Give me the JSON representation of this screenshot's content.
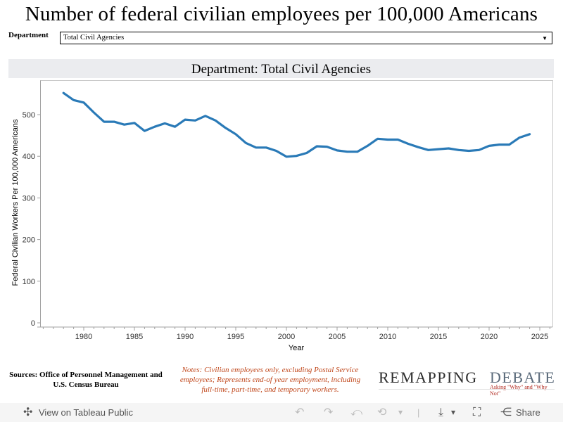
{
  "title": "Number of federal civilian employees per 100,000 Americans",
  "filter": {
    "label": "Department",
    "selected": "Total Civil Agencies",
    "arrow": "▼"
  },
  "chart_header": "Department: Total Civil Agencies",
  "chart_data": {
    "type": "line",
    "title": "Department: Total Civil Agencies",
    "xlabel": "Year",
    "ylabel": "Federal Civilian Workers Per 100,000 Americans",
    "xlim": [
      1976,
      2026
    ],
    "ylim": [
      0,
      580
    ],
    "x_ticks": [
      1980,
      1985,
      1990,
      1995,
      2000,
      2005,
      2010,
      2015,
      2020,
      2025
    ],
    "y_ticks": [
      0,
      100,
      200,
      300,
      400,
      500
    ],
    "grid": false,
    "color": "#2a7ab7",
    "series": [
      {
        "name": "Total Civil Agencies",
        "x": [
          1978,
          1979,
          1980,
          1981,
          1982,
          1983,
          1984,
          1985,
          1986,
          1987,
          1988,
          1989,
          1990,
          1991,
          1992,
          1993,
          1994,
          1995,
          1996,
          1997,
          1998,
          1999,
          2000,
          2001,
          2002,
          2003,
          2004,
          2005,
          2006,
          2007,
          2008,
          2009,
          2010,
          2011,
          2012,
          2013,
          2014,
          2015,
          2016,
          2017,
          2018,
          2019,
          2020,
          2021,
          2022,
          2023,
          2024
        ],
        "values": [
          552,
          535,
          529,
          505,
          483,
          483,
          476,
          480,
          461,
          471,
          479,
          471,
          488,
          486,
          497,
          486,
          468,
          453,
          432,
          421,
          421,
          413,
          399,
          401,
          408,
          424,
          423,
          414,
          411,
          411,
          425,
          442,
          440,
          440,
          430,
          422,
          415,
          417,
          419,
          415,
          413,
          415,
          425,
          428,
          428,
          445,
          453
        ]
      }
    ]
  },
  "footer": {
    "sources": "Sources: Office of Personnel Management and U.S. Census Bureau",
    "notes": "Notes: Civilian employees only, excluding Postal Service employees; Represents end-of year employment, including full-time, part-time, and temporary workers.",
    "logo_word1": "REMAPPING",
    "logo_word2": "DEBATE",
    "logo_tagline": "Asking \"Why\" and \"Why Not\""
  },
  "toolbar": {
    "view_label": "View on Tableau Public",
    "share_label": "Share",
    "icons": {
      "tableau": "✣",
      "undo": "↶",
      "redo": "↷",
      "revert": "⤺",
      "refresh": "⟲",
      "dropdown": "▾",
      "download": "⤓",
      "fullscreen": "⛶",
      "share": "⋲"
    }
  }
}
